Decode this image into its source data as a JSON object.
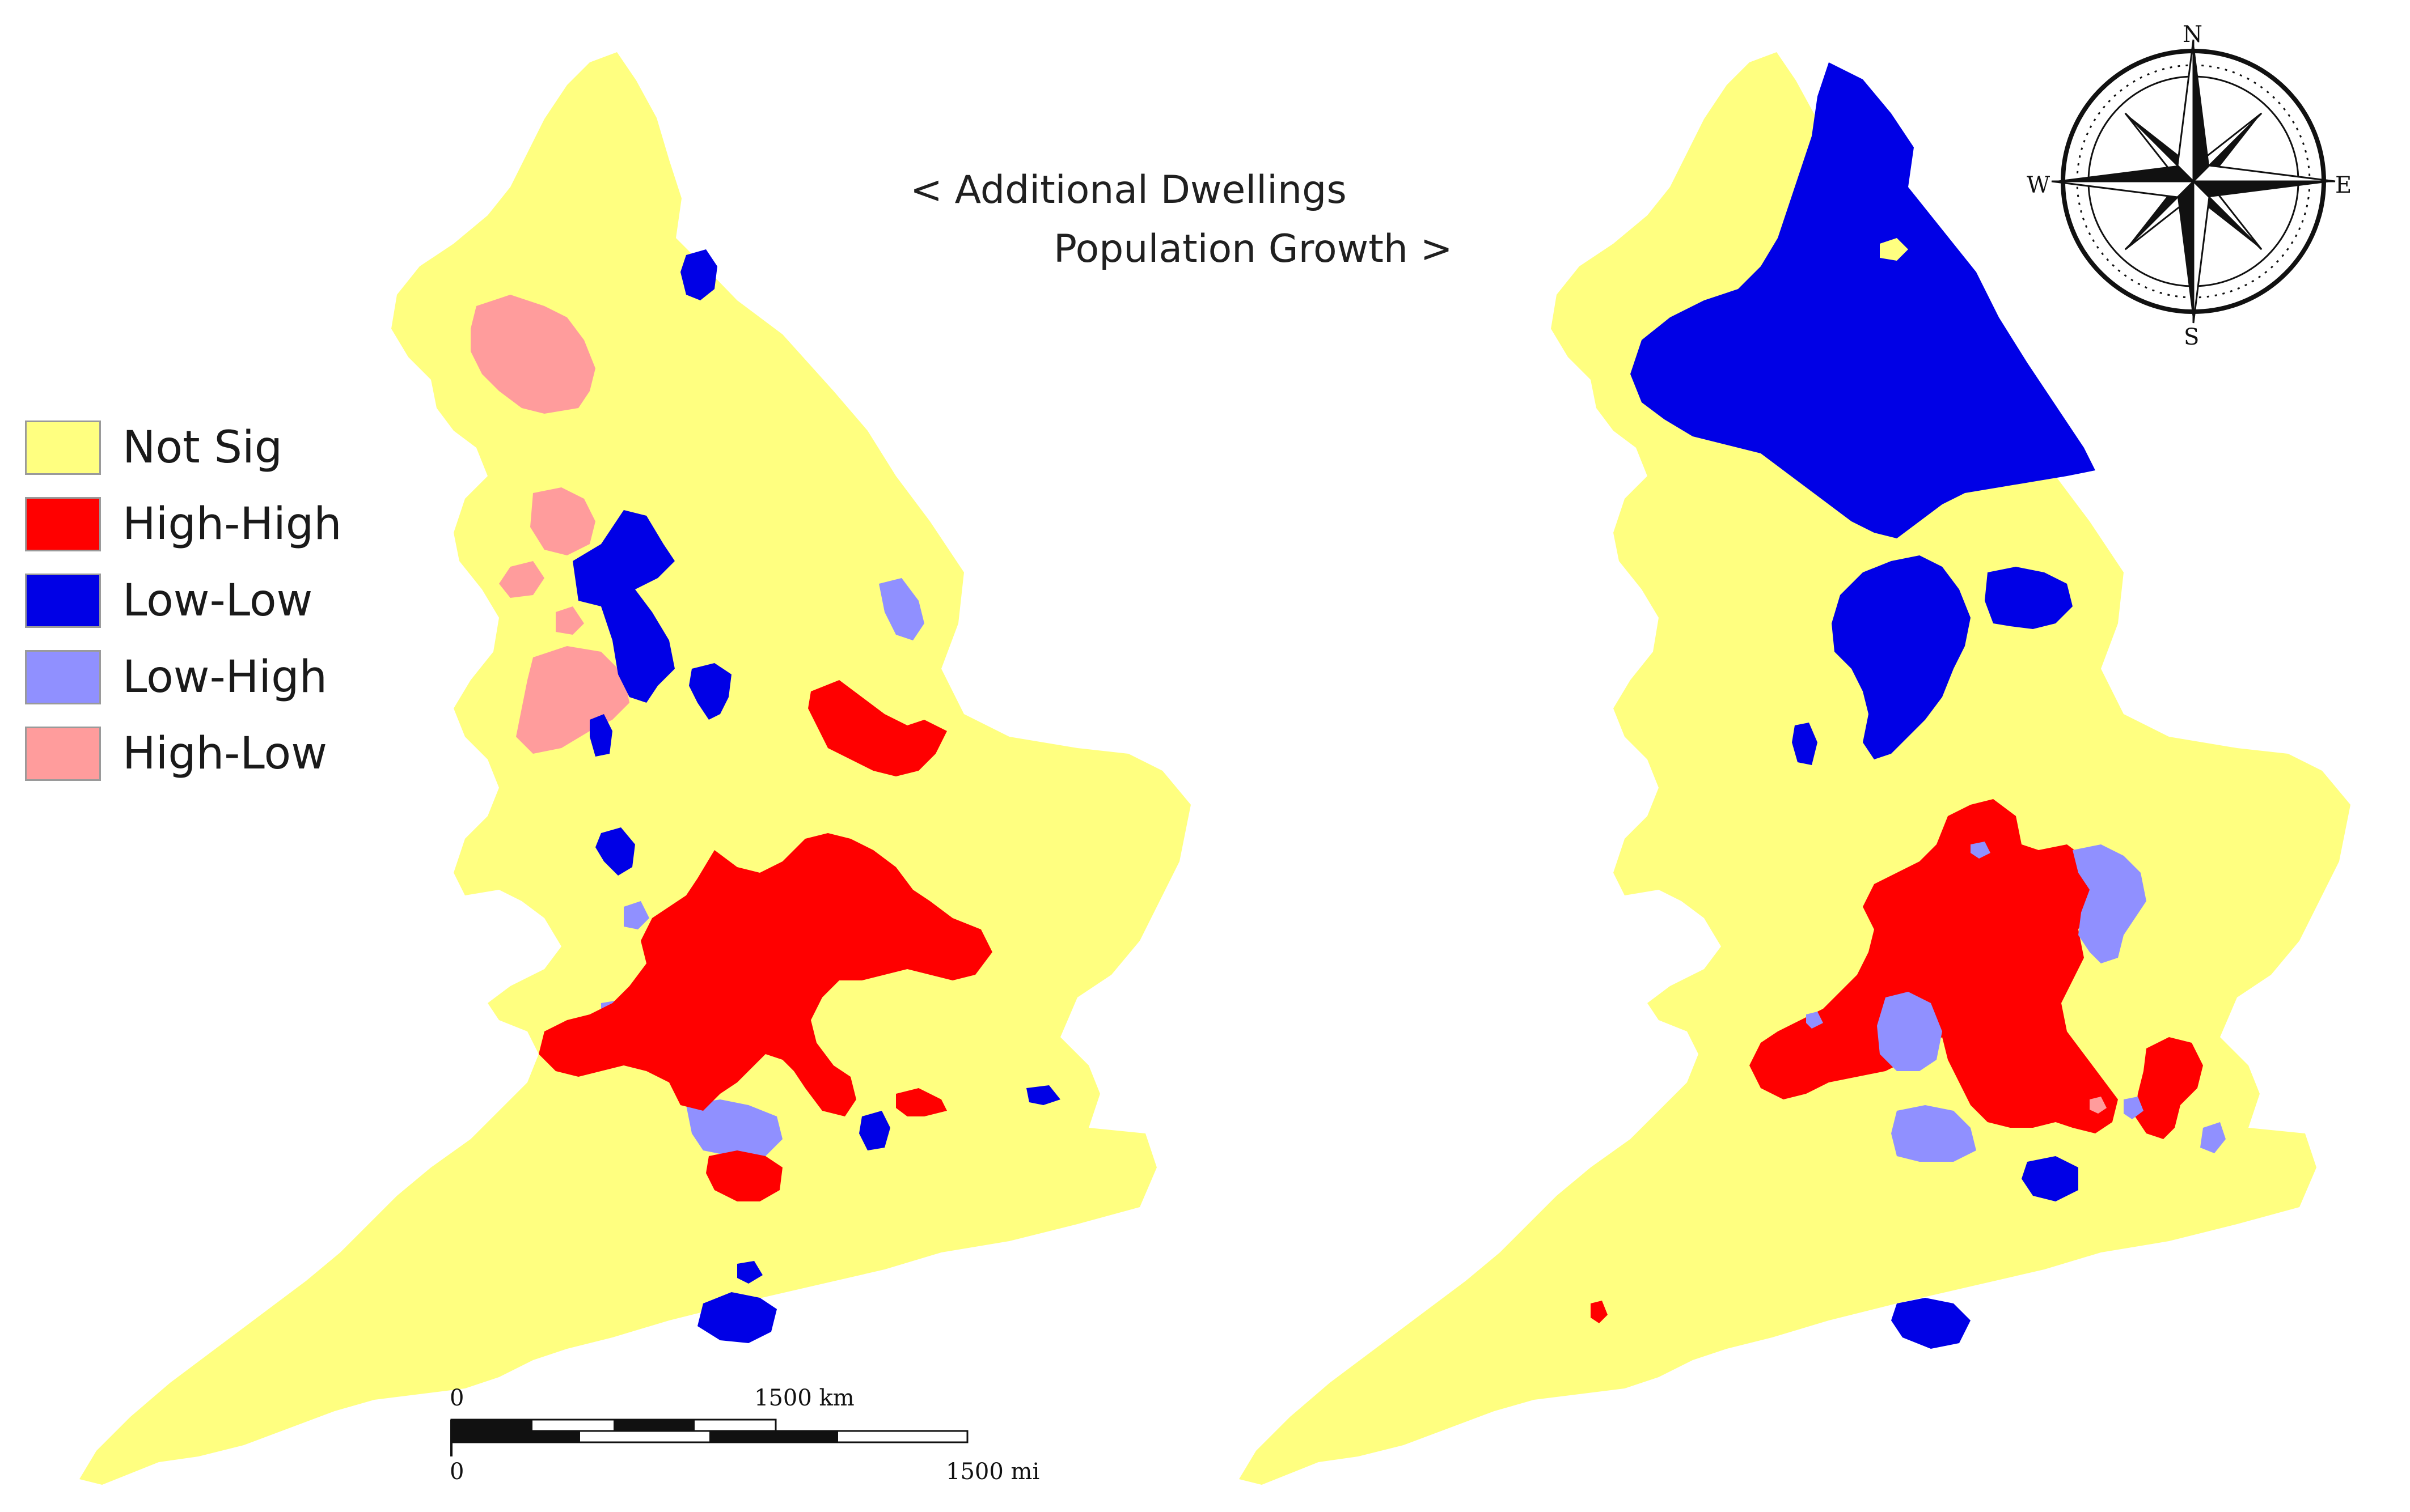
{
  "titles": {
    "left": "< Additional Dwellings",
    "right": "Population Growth >"
  },
  "legend": [
    {
      "label": "Not Sig",
      "color": "#ffff80"
    },
    {
      "label": "High-High",
      "color": "#ff0000"
    },
    {
      "label": "Low-Low",
      "color": "#0000e6"
    },
    {
      "label": "Low-High",
      "color": "#9090ff"
    },
    {
      "label": "High-Low",
      "color": "#ff9c9c"
    }
  ],
  "maps": [
    {
      "name": "Additional Dwellings",
      "base_category": "Not Sig"
    },
    {
      "name": "Population Growth",
      "base_category": "Not Sig"
    }
  ],
  "scale_bar": {
    "km_zero": "0",
    "km_label": "1500 km",
    "mi_zero": "0",
    "mi_label": "1500 mi"
  },
  "compass": {
    "n": "N",
    "s": "S",
    "e": "E",
    "w": "W"
  }
}
